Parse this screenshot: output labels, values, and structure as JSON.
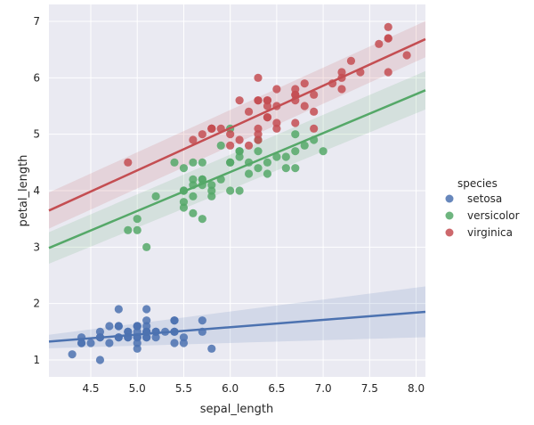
{
  "chart_data": {
    "type": "scatter",
    "xlabel": "sepal_length",
    "ylabel": "petal_length",
    "xlim": [
      4.05,
      8.1
    ],
    "ylim": [
      0.7,
      7.3
    ],
    "xticks": [
      "4.5",
      "5.0",
      "5.5",
      "6.0",
      "6.5",
      "7.0",
      "7.5",
      "8.0"
    ],
    "yticks": [
      "1",
      "2",
      "3",
      "4",
      "5",
      "6",
      "7"
    ],
    "grid": true,
    "legend": {
      "title": "species",
      "placement": "right"
    },
    "series": [
      {
        "name": "setosa",
        "color": "#4c72b0",
        "regression": {
          "intercept": 0.8,
          "slope": 0.13,
          "ci_start": 0.12,
          "ci_end": 0.45
        },
        "points": [
          [
            5.1,
            1.4
          ],
          [
            4.9,
            1.4
          ],
          [
            4.7,
            1.3
          ],
          [
            4.6,
            1.5
          ],
          [
            5.0,
            1.4
          ],
          [
            5.4,
            1.7
          ],
          [
            4.6,
            1.4
          ],
          [
            5.0,
            1.5
          ],
          [
            4.4,
            1.4
          ],
          [
            4.9,
            1.5
          ],
          [
            5.4,
            1.5
          ],
          [
            4.8,
            1.6
          ],
          [
            4.8,
            1.4
          ],
          [
            4.3,
            1.1
          ],
          [
            5.8,
            1.2
          ],
          [
            5.7,
            1.5
          ],
          [
            5.4,
            1.3
          ],
          [
            5.1,
            1.4
          ],
          [
            5.7,
            1.7
          ],
          [
            5.1,
            1.5
          ],
          [
            5.4,
            1.7
          ],
          [
            5.1,
            1.5
          ],
          [
            4.6,
            1.0
          ],
          [
            5.1,
            1.7
          ],
          [
            4.8,
            1.9
          ],
          [
            5.0,
            1.6
          ],
          [
            5.0,
            1.6
          ],
          [
            5.2,
            1.5
          ],
          [
            5.2,
            1.4
          ],
          [
            4.7,
            1.6
          ],
          [
            4.8,
            1.6
          ],
          [
            5.4,
            1.5
          ],
          [
            5.2,
            1.5
          ],
          [
            5.5,
            1.4
          ],
          [
            4.9,
            1.5
          ],
          [
            5.0,
            1.2
          ],
          [
            5.5,
            1.3
          ],
          [
            4.9,
            1.4
          ],
          [
            4.4,
            1.3
          ],
          [
            5.1,
            1.5
          ],
          [
            5.0,
            1.3
          ],
          [
            4.5,
            1.3
          ],
          [
            4.4,
            1.3
          ],
          [
            5.0,
            1.6
          ],
          [
            5.1,
            1.9
          ],
          [
            4.8,
            1.4
          ],
          [
            5.1,
            1.6
          ],
          [
            4.6,
            1.4
          ],
          [
            5.3,
            1.5
          ],
          [
            5.0,
            1.4
          ]
        ]
      },
      {
        "name": "versicolor",
        "color": "#55a868",
        "regression": {
          "intercept": 0.19,
          "slope": 0.69,
          "ci_start": 0.28,
          "ci_end": 0.34
        },
        "points": [
          [
            7.0,
            4.7
          ],
          [
            6.4,
            4.5
          ],
          [
            6.9,
            4.9
          ],
          [
            5.5,
            4.0
          ],
          [
            6.5,
            4.6
          ],
          [
            5.7,
            4.5
          ],
          [
            6.3,
            4.7
          ],
          [
            4.9,
            3.3
          ],
          [
            6.6,
            4.6
          ],
          [
            5.2,
            3.9
          ],
          [
            5.0,
            3.5
          ],
          [
            5.9,
            4.2
          ],
          [
            6.0,
            4.0
          ],
          [
            6.1,
            4.7
          ],
          [
            5.6,
            3.6
          ],
          [
            6.7,
            4.4
          ],
          [
            5.6,
            4.5
          ],
          [
            5.8,
            4.1
          ],
          [
            6.2,
            4.5
          ],
          [
            5.6,
            3.9
          ],
          [
            5.9,
            4.8
          ],
          [
            6.1,
            4.0
          ],
          [
            6.3,
            4.9
          ],
          [
            6.1,
            4.7
          ],
          [
            6.4,
            4.3
          ],
          [
            6.6,
            4.4
          ],
          [
            6.8,
            4.8
          ],
          [
            6.7,
            5.0
          ],
          [
            6.0,
            4.5
          ],
          [
            5.7,
            3.5
          ],
          [
            5.5,
            3.8
          ],
          [
            5.5,
            3.7
          ],
          [
            5.8,
            3.9
          ],
          [
            6.0,
            5.1
          ],
          [
            5.4,
            4.5
          ],
          [
            6.0,
            4.5
          ],
          [
            6.7,
            4.7
          ],
          [
            6.3,
            4.4
          ],
          [
            5.6,
            4.1
          ],
          [
            5.5,
            4.0
          ],
          [
            5.5,
            4.4
          ],
          [
            6.1,
            4.6
          ],
          [
            5.8,
            4.0
          ],
          [
            5.0,
            3.3
          ],
          [
            5.6,
            4.2
          ],
          [
            5.7,
            4.2
          ],
          [
            5.7,
            4.2
          ],
          [
            6.2,
            4.3
          ],
          [
            5.1,
            3.0
          ],
          [
            5.7,
            4.1
          ]
        ]
      },
      {
        "name": "virginica",
        "color": "#c44e52",
        "regression": {
          "intercept": 0.61,
          "slope": 0.75,
          "ci_start": 0.32,
          "ci_end": 0.32
        },
        "points": [
          [
            6.3,
            6.0
          ],
          [
            5.8,
            5.1
          ],
          [
            7.1,
            5.9
          ],
          [
            6.3,
            5.6
          ],
          [
            6.5,
            5.8
          ],
          [
            7.6,
            6.6
          ],
          [
            4.9,
            4.5
          ],
          [
            7.3,
            6.3
          ],
          [
            6.7,
            5.8
          ],
          [
            7.2,
            6.1
          ],
          [
            6.5,
            5.1
          ],
          [
            6.4,
            5.3
          ],
          [
            6.8,
            5.5
          ],
          [
            5.7,
            5.0
          ],
          [
            5.8,
            5.1
          ],
          [
            6.4,
            5.3
          ],
          [
            6.5,
            5.5
          ],
          [
            7.7,
            6.7
          ],
          [
            7.7,
            6.9
          ],
          [
            6.0,
            5.0
          ],
          [
            6.9,
            5.7
          ],
          [
            5.6,
            4.9
          ],
          [
            7.7,
            6.7
          ],
          [
            6.3,
            4.9
          ],
          [
            6.7,
            5.7
          ],
          [
            7.2,
            6.0
          ],
          [
            6.2,
            4.8
          ],
          [
            6.1,
            4.9
          ],
          [
            6.4,
            5.6
          ],
          [
            7.2,
            5.8
          ],
          [
            7.4,
            6.1
          ],
          [
            7.9,
            6.4
          ],
          [
            6.4,
            5.6
          ],
          [
            6.3,
            5.1
          ],
          [
            6.1,
            5.6
          ],
          [
            7.7,
            6.1
          ],
          [
            6.3,
            5.6
          ],
          [
            6.4,
            5.5
          ],
          [
            6.0,
            4.8
          ],
          [
            6.9,
            5.4
          ],
          [
            6.7,
            5.6
          ],
          [
            6.9,
            5.1
          ],
          [
            5.8,
            5.1
          ],
          [
            6.8,
            5.9
          ],
          [
            6.7,
            5.7
          ],
          [
            6.7,
            5.2
          ],
          [
            6.3,
            5.0
          ],
          [
            6.5,
            5.2
          ],
          [
            6.2,
            5.4
          ],
          [
            5.9,
            5.1
          ]
        ]
      }
    ]
  }
}
